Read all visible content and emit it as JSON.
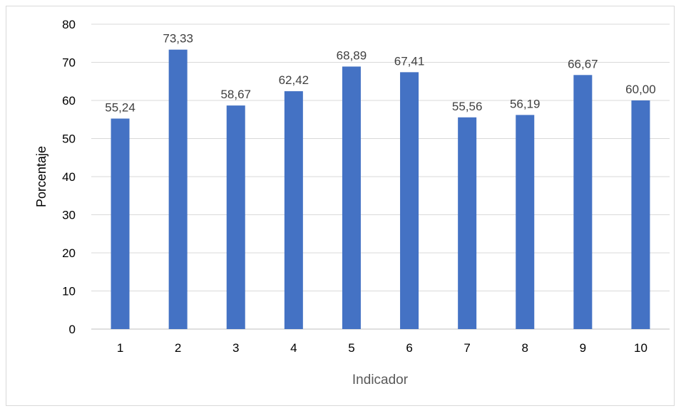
{
  "chart_data": {
    "type": "bar",
    "categories": [
      "1",
      "2",
      "3",
      "4",
      "5",
      "6",
      "7",
      "8",
      "9",
      "10"
    ],
    "values": [
      55.24,
      73.33,
      58.67,
      62.42,
      68.89,
      67.41,
      55.56,
      56.19,
      66.67,
      60.0
    ],
    "value_labels": [
      "55,24",
      "73,33",
      "58,67",
      "62,42",
      "68,89",
      "67,41",
      "55,56",
      "56,19",
      "66,67",
      "60,00"
    ],
    "title": "",
    "xlabel": "Indicador",
    "ylabel": "Porcentaje",
    "ylim": [
      0,
      80
    ],
    "yticks": [
      "0",
      "10",
      "20",
      "30",
      "40",
      "50",
      "60",
      "70",
      "80"
    ],
    "grid": true,
    "legend": "none",
    "bar_color": "#4472C4"
  }
}
